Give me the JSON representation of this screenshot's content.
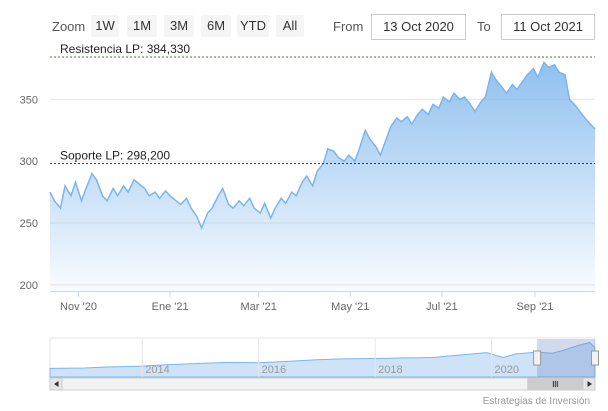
{
  "toolbar": {
    "zoom_label": "Zoom",
    "buttons": [
      "1W",
      "1M",
      "3M",
      "6M",
      "YTD",
      "All"
    ],
    "from_label": "From",
    "from_value": "13 Oct 2020",
    "to_label": "To",
    "to_value": "11 Oct 2021"
  },
  "chart_data": {
    "type": "area",
    "title": "",
    "xlabel": "",
    "ylabel": "",
    "x_range": [
      "2020-10-13",
      "2021-10-11"
    ],
    "ylim": [
      195,
      390
    ],
    "y_ticks": [
      200,
      250,
      300,
      350
    ],
    "x_ticks": [
      {
        "label": "Nov '20",
        "date": "2020-11-01"
      },
      {
        "label": "Ene '21",
        "date": "2021-01-01"
      },
      {
        "label": "Mar '21",
        "date": "2021-03-01"
      },
      {
        "label": "May '21",
        "date": "2021-05-01"
      },
      {
        "label": "Jul '21",
        "date": "2021-07-01"
      },
      {
        "label": "Sep '21",
        "date": "2021-09-01"
      }
    ],
    "grid": true,
    "series": [
      {
        "color": "#7cb5ec",
        "points": [
          [
            "2020-10-13",
            275
          ],
          [
            "2020-10-16",
            268
          ],
          [
            "2020-10-20",
            262
          ],
          [
            "2020-10-23",
            280
          ],
          [
            "2020-10-27",
            272
          ],
          [
            "2020-10-30",
            283
          ],
          [
            "2020-11-03",
            268
          ],
          [
            "2020-11-06",
            278
          ],
          [
            "2020-11-10",
            290
          ],
          [
            "2020-11-13",
            285
          ],
          [
            "2020-11-17",
            272
          ],
          [
            "2020-11-20",
            268
          ],
          [
            "2020-11-24",
            278
          ],
          [
            "2020-11-27",
            272
          ],
          [
            "2020-12-01",
            280
          ],
          [
            "2020-12-04",
            275
          ],
          [
            "2020-12-08",
            285
          ],
          [
            "2020-12-11",
            282
          ],
          [
            "2020-12-15",
            278
          ],
          [
            "2020-12-18",
            272
          ],
          [
            "2020-12-22",
            275
          ],
          [
            "2020-12-25",
            270
          ],
          [
            "2020-12-29",
            276
          ],
          [
            "2021-01-01",
            272
          ],
          [
            "2021-01-05",
            268
          ],
          [
            "2021-01-08",
            265
          ],
          [
            "2021-01-12",
            270
          ],
          [
            "2021-01-15",
            262
          ],
          [
            "2021-01-19",
            255
          ],
          [
            "2021-01-22",
            246
          ],
          [
            "2021-01-26",
            258
          ],
          [
            "2021-01-29",
            262
          ],
          [
            "2021-02-02",
            272
          ],
          [
            "2021-02-05",
            278
          ],
          [
            "2021-02-09",
            265
          ],
          [
            "2021-02-12",
            262
          ],
          [
            "2021-02-16",
            268
          ],
          [
            "2021-02-19",
            264
          ],
          [
            "2021-02-23",
            270
          ],
          [
            "2021-02-26",
            262
          ],
          [
            "2021-03-02",
            258
          ],
          [
            "2021-03-05",
            266
          ],
          [
            "2021-03-09",
            254
          ],
          [
            "2021-03-12",
            262
          ],
          [
            "2021-03-16",
            270
          ],
          [
            "2021-03-19",
            266
          ],
          [
            "2021-03-23",
            275
          ],
          [
            "2021-03-26",
            272
          ],
          [
            "2021-03-30",
            283
          ],
          [
            "2021-04-02",
            288
          ],
          [
            "2021-04-06",
            280
          ],
          [
            "2021-04-09",
            292
          ],
          [
            "2021-04-13",
            298
          ],
          [
            "2021-04-16",
            310
          ],
          [
            "2021-04-20",
            308
          ],
          [
            "2021-04-23",
            303
          ],
          [
            "2021-04-27",
            300
          ],
          [
            "2021-04-30",
            305
          ],
          [
            "2021-05-04",
            300
          ],
          [
            "2021-05-07",
            310
          ],
          [
            "2021-05-11",
            325
          ],
          [
            "2021-05-14",
            318
          ],
          [
            "2021-05-18",
            312
          ],
          [
            "2021-05-21",
            305
          ],
          [
            "2021-05-25",
            318
          ],
          [
            "2021-05-28",
            328
          ],
          [
            "2021-06-01",
            335
          ],
          [
            "2021-06-04",
            332
          ],
          [
            "2021-06-08",
            336
          ],
          [
            "2021-06-11",
            330
          ],
          [
            "2021-06-15",
            338
          ],
          [
            "2021-06-18",
            342
          ],
          [
            "2021-06-22",
            338
          ],
          [
            "2021-06-25",
            346
          ],
          [
            "2021-06-29",
            343
          ],
          [
            "2021-07-02",
            352
          ],
          [
            "2021-07-06",
            348
          ],
          [
            "2021-07-09",
            355
          ],
          [
            "2021-07-13",
            350
          ],
          [
            "2021-07-16",
            352
          ],
          [
            "2021-07-20",
            346
          ],
          [
            "2021-07-23",
            340
          ],
          [
            "2021-07-27",
            348
          ],
          [
            "2021-07-30",
            352
          ],
          [
            "2021-08-03",
            372
          ],
          [
            "2021-08-06",
            366
          ],
          [
            "2021-08-10",
            360
          ],
          [
            "2021-08-13",
            355
          ],
          [
            "2021-08-17",
            362
          ],
          [
            "2021-08-20",
            358
          ],
          [
            "2021-08-24",
            365
          ],
          [
            "2021-08-27",
            370
          ],
          [
            "2021-08-31",
            375
          ],
          [
            "2021-09-03",
            368
          ],
          [
            "2021-09-07",
            380
          ],
          [
            "2021-09-10",
            376
          ],
          [
            "2021-09-14",
            378
          ],
          [
            "2021-09-17",
            372
          ],
          [
            "2021-09-21",
            370
          ],
          [
            "2021-09-24",
            350
          ],
          [
            "2021-09-28",
            345
          ],
          [
            "2021-10-01",
            340
          ],
          [
            "2021-10-05",
            334
          ],
          [
            "2021-10-08",
            330
          ],
          [
            "2021-10-11",
            326
          ]
        ]
      }
    ],
    "annotations": [
      {
        "label": "Resistencia LP: 384,330",
        "value": 384.33,
        "color": "#2e7d32"
      },
      {
        "label": "Soporte LP: 298,200",
        "value": 298.2,
        "color": "#8b1a1a"
      }
    ],
    "navigator": {
      "x_range": [
        "2012-06-01",
        "2021-10-11"
      ],
      "ticks": [
        {
          "label": "2014",
          "date": "2014-01-01"
        },
        {
          "label": "2016",
          "date": "2016-01-01"
        },
        {
          "label": "2018",
          "date": "2018-01-01"
        },
        {
          "label": "2020",
          "date": "2020-01-01"
        }
      ],
      "series": [
        [
          "2012-06-01",
          95
        ],
        [
          "2013-01-01",
          100
        ],
        [
          "2013-06-01",
          110
        ],
        [
          "2014-01-01",
          120
        ],
        [
          "2014-06-01",
          135
        ],
        [
          "2015-01-01",
          150
        ],
        [
          "2015-06-01",
          160
        ],
        [
          "2016-01-01",
          158
        ],
        [
          "2016-06-01",
          170
        ],
        [
          "2017-01-01",
          190
        ],
        [
          "2017-06-01",
          200
        ],
        [
          "2018-01-01",
          205
        ],
        [
          "2018-06-01",
          210
        ],
        [
          "2019-01-01",
          215
        ],
        [
          "2019-06-01",
          240
        ],
        [
          "2019-12-01",
          270
        ],
        [
          "2020-03-15",
          215
        ],
        [
          "2020-06-01",
          255
        ],
        [
          "2020-10-13",
          275
        ],
        [
          "2021-01-15",
          262
        ],
        [
          "2021-04-15",
          305
        ],
        [
          "2021-07-01",
          350
        ],
        [
          "2021-09-07",
          380
        ],
        [
          "2021-10-11",
          326
        ]
      ],
      "ylim": [
        0,
        420
      ],
      "selected_range": [
        "2020-10-13",
        "2021-10-11"
      ]
    },
    "credit": "Estrategias de Inversión"
  }
}
